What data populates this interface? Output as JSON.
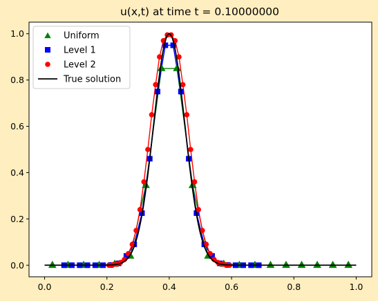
{
  "chart_data": {
    "type": "line",
    "title": "u(x,t) at time t =      0.10000000",
    "xlabel": "",
    "ylabel": "",
    "xlim": [
      -0.05,
      1.05
    ],
    "ylim": [
      -0.05,
      1.05
    ],
    "xticks": [
      "0.0",
      "0.2",
      "0.4",
      "0.6",
      "0.8",
      "1.0"
    ],
    "yticks": [
      "0.0",
      "0.2",
      "0.4",
      "0.6",
      "0.8",
      "1.0"
    ],
    "grid": false,
    "legend_position": "top-left",
    "series": [
      {
        "name": "Uniform",
        "marker": "triangle",
        "color": "#008000",
        "x": [
          0.025,
          0.075,
          0.125,
          0.175,
          0.225,
          0.275,
          0.325,
          0.375,
          0.425,
          0.475,
          0.525,
          0.575,
          0.625,
          0.675,
          0.725,
          0.775,
          0.825,
          0.875,
          0.925,
          0.975
        ],
        "y": [
          0.0,
          0.0,
          0.0,
          0.0,
          0.005,
          0.04,
          0.345,
          0.85,
          0.85,
          0.345,
          0.04,
          0.005,
          0.0,
          0.0,
          0.0,
          0.0,
          0.0,
          0.0,
          0.0,
          0.0
        ]
      },
      {
        "name": "Level 1",
        "marker": "square",
        "color": "#0000ff",
        "x": [
          0.0625,
          0.0875,
          0.1125,
          0.1375,
          0.1625,
          0.1875,
          0.2125,
          0.2375,
          0.2625,
          0.2875,
          0.3125,
          0.3375,
          0.3625,
          0.3875,
          0.4125,
          0.4375,
          0.4625,
          0.4875,
          0.5125,
          0.5375,
          0.5625,
          0.5875,
          0.6125,
          0.6375,
          0.6625,
          0.6875
        ],
        "y": [
          0.0,
          0.0,
          0.0,
          0.0,
          0.0,
          0.0,
          0.001,
          0.008,
          0.04,
          0.09,
          0.225,
          0.46,
          0.75,
          0.95,
          0.95,
          0.75,
          0.46,
          0.225,
          0.09,
          0.04,
          0.008,
          0.001,
          0.0,
          0.0,
          0.0,
          0.0
        ]
      },
      {
        "name": "Level 2",
        "marker": "circle",
        "color": "#ff0000",
        "x": [
          0.20625,
          0.21875,
          0.23125,
          0.24375,
          0.25625,
          0.26875,
          0.28125,
          0.29375,
          0.30625,
          0.31875,
          0.33125,
          0.34375,
          0.35625,
          0.36875,
          0.38125,
          0.39375,
          0.40625,
          0.41875,
          0.43125,
          0.44375,
          0.45625,
          0.46875,
          0.48125,
          0.49375,
          0.50625,
          0.51875,
          0.53125,
          0.54375,
          0.55625,
          0.56875,
          0.58125,
          0.59375
        ],
        "y": [
          0.0,
          0.002,
          0.005,
          0.012,
          0.025,
          0.05,
          0.09,
          0.15,
          0.24,
          0.36,
          0.5,
          0.65,
          0.78,
          0.9,
          0.97,
          0.995,
          0.995,
          0.97,
          0.9,
          0.78,
          0.65,
          0.5,
          0.36,
          0.24,
          0.15,
          0.09,
          0.05,
          0.025,
          0.012,
          0.005,
          0.002,
          0.0
        ]
      },
      {
        "name": "True solution",
        "marker": "none",
        "color": "#000000",
        "curve": {
          "center": 0.4,
          "width": 0.071,
          "x_start": 0.0,
          "x_end": 1.0
        }
      }
    ]
  }
}
